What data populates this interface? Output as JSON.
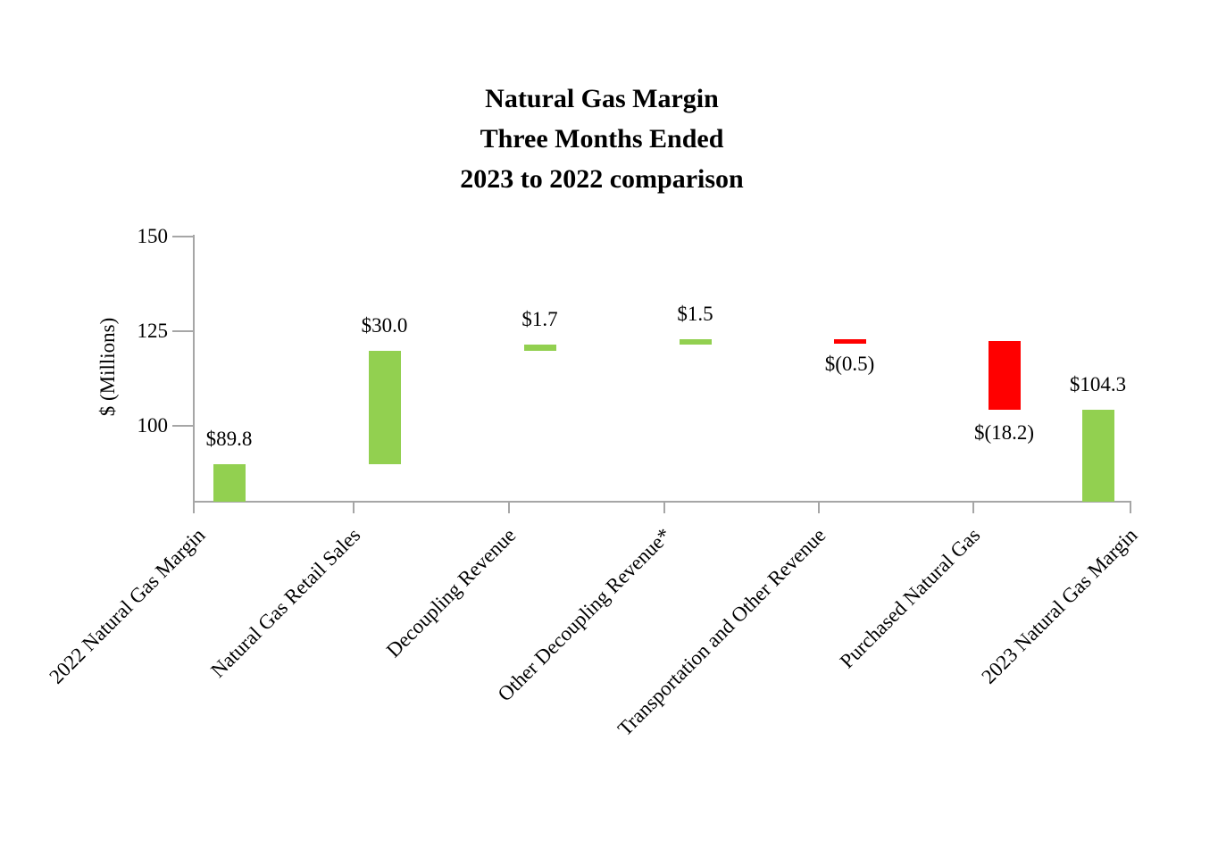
{
  "chart_data": {
    "type": "bar",
    "subtype": "waterfall",
    "title_lines": [
      "Natural Gas Margin",
      "Three Months Ended",
      "2023 to 2022 comparison"
    ],
    "xlabel": "",
    "ylabel": "$ (Millions)",
    "y_axis": {
      "min": 80,
      "max": 150,
      "ticks": [
        150,
        125,
        100
      ]
    },
    "grid": false,
    "legend": null,
    "categories": [
      "2022 Natural Gas Margin",
      "Natural Gas Retail Sales",
      "Decoupling Revenue",
      "Other Decoupling Revenue*",
      "Transportation and Other Revenue",
      "Purchased Natural Gas",
      "2023 Natural Gas Margin"
    ],
    "bars": [
      {
        "category": "2022 Natural Gas Margin",
        "start": 80,
        "end": 89.8,
        "value": 89.8,
        "label": "$89.8",
        "label_position": "above",
        "color": "#92D050"
      },
      {
        "category": "Natural Gas Retail Sales",
        "start": 89.8,
        "end": 119.8,
        "value": 30.0,
        "label": "$30.0",
        "label_position": "above",
        "color": "#92D050"
      },
      {
        "category": "Decoupling Revenue",
        "start": 119.8,
        "end": 121.5,
        "value": 1.7,
        "label": "$1.7",
        "label_position": "above",
        "color": "#92D050"
      },
      {
        "category": "Other Decoupling Revenue*",
        "start": 121.5,
        "end": 123.0,
        "value": 1.5,
        "label": "$1.5",
        "label_position": "above",
        "color": "#92D050"
      },
      {
        "category": "Transportation and Other Revenue",
        "start": 123.0,
        "end": 122.5,
        "value": -0.5,
        "label": "$(0.5)",
        "label_position": "below",
        "color": "#FF0000"
      },
      {
        "category": "Purchased Natural Gas",
        "start": 122.5,
        "end": 104.3,
        "value": -18.2,
        "label": "$(18.2)",
        "label_position": "below",
        "color": "#FF0000"
      },
      {
        "category": "2023 Natural Gas Margin",
        "start": 80,
        "end": 104.3,
        "value": 104.3,
        "label": "$104.3",
        "label_position": "above",
        "color": "#92D050"
      }
    ],
    "colors": {
      "increase": "#92D050",
      "decrease": "#FF0000",
      "axis": "#A6A6A6",
      "text": "#000000",
      "background": "#FFFFFF"
    }
  }
}
